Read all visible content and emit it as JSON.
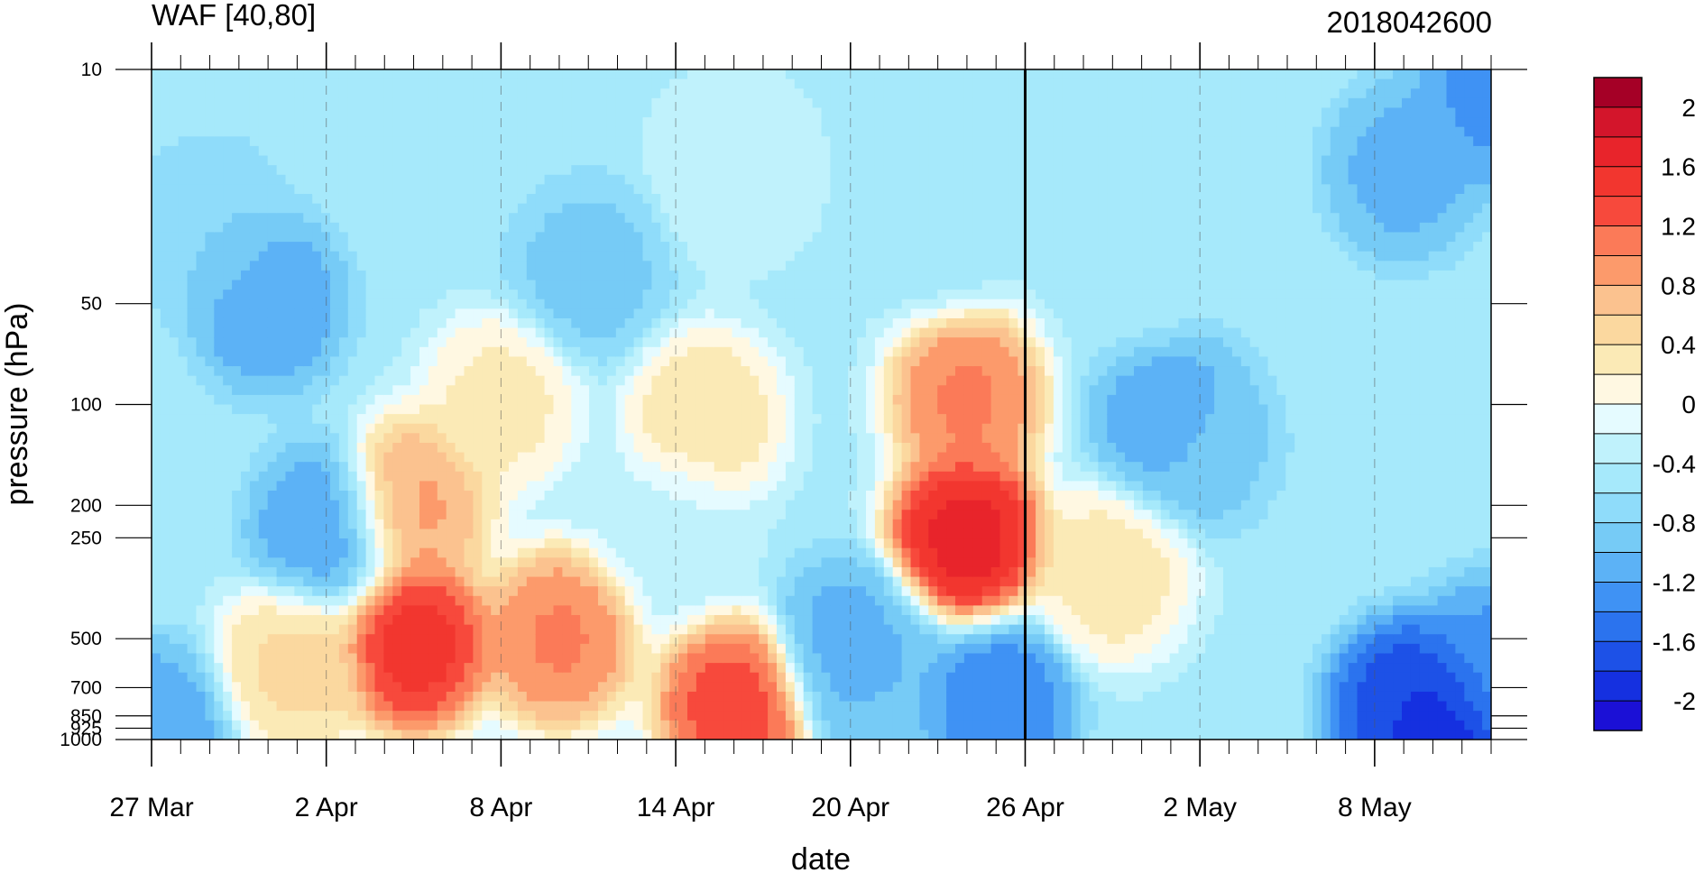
{
  "chart_data": {
    "type": "heatmap",
    "title": "WAF [40,80]",
    "subtitle": "2018042600",
    "xlabel": "date",
    "ylabel": "pressure (hPa)",
    "x_ticks": [
      "27 Mar",
      "2 Apr",
      "8 Apr",
      "14 Apr",
      "20 Apr",
      "26 Apr",
      "2 May",
      "8 May"
    ],
    "x_range": [
      "2018-03-27",
      "2018-05-12"
    ],
    "y_ticks": [
      10,
      50,
      100,
      200,
      250,
      500,
      700,
      850,
      925,
      1000
    ],
    "y_tick_labels": [
      "10",
      "50",
      "100",
      "200",
      "250",
      "500",
      "700",
      "850",
      "925",
      "1000"
    ],
    "y_scale": "log",
    "y_range": [
      1000,
      10
    ],
    "reference_date": "2018-04-26",
    "colorbar": {
      "labels": [
        "2",
        "1.6",
        "1.2",
        "0.8",
        "0.4",
        "0",
        "-0.4",
        "-0.8",
        "-1.2",
        "-1.6",
        "-2"
      ],
      "levels": [
        2.2,
        2.0,
        1.8,
        1.6,
        1.4,
        1.2,
        1.0,
        0.8,
        0.6,
        0.4,
        0.2,
        0.0,
        -0.2,
        -0.4,
        -0.6,
        -0.8,
        -1.0,
        -1.2,
        -1.4,
        -1.6,
        -1.8,
        -2.0,
        -2.2
      ],
      "colors": [
        "#a50026",
        "#d3152b",
        "#e8242b",
        "#f2362f",
        "#f7493c",
        "#fb7a58",
        "#fc9a6b",
        "#fbc28f",
        "#fbd89f",
        "#fbeab6",
        "#fff8e2",
        "#e5fbff",
        "#c0f2fc",
        "#a6e9fb",
        "#8fdcfa",
        "#76cbf6",
        "#5cb2f6",
        "#3f92f4",
        "#2b73ee",
        "#1d51e7",
        "#1530e0",
        "#1b10d6"
      ]
    },
    "features": [
      {
        "date": "2018-04-05",
        "pressure": 520,
        "value": 1.6
      },
      {
        "date": "2018-04-16",
        "pressure": 800,
        "value": 1.4
      },
      {
        "date": "2018-04-24",
        "pressure": 250,
        "value": 1.8
      },
      {
        "date": "2018-04-24",
        "pressure": 95,
        "value": 1.1
      },
      {
        "date": "2018-04-10",
        "pressure": 500,
        "value": 1.1
      },
      {
        "date": "2018-04-05",
        "pressure": 200,
        "value": 0.9
      },
      {
        "date": "2018-04-15",
        "pressure": 110,
        "value": 0.4
      },
      {
        "date": "2018-04-01",
        "pressure": 600,
        "value": 0.5
      },
      {
        "date": "2018-04-08",
        "pressure": 100,
        "value": 0.3
      },
      {
        "date": "2018-04-29",
        "pressure": 320,
        "value": 0.35
      },
      {
        "date": "2018-04-14",
        "pressure": 240,
        "value": -0.25
      },
      {
        "date": "2018-03-31",
        "pressure": 50,
        "value": -1.2
      },
      {
        "date": "2018-03-29",
        "pressure": 30,
        "value": -0.8
      },
      {
        "date": "2018-04-02",
        "pressure": 240,
        "value": -1.2
      },
      {
        "date": "2018-04-11",
        "pressure": 40,
        "value": -0.9
      },
      {
        "date": "2018-04-20",
        "pressure": 520,
        "value": -1.1
      },
      {
        "date": "2018-04-21",
        "pressure": 660,
        "value": -1.0
      },
      {
        "date": "2018-04-25",
        "pressure": 780,
        "value": -1.4
      },
      {
        "date": "2018-05-02",
        "pressure": 130,
        "value": -0.9
      },
      {
        "date": "2018-05-01",
        "pressure": 110,
        "value": -1.2
      },
      {
        "date": "2018-05-09",
        "pressure": 20,
        "value": -1.1
      },
      {
        "date": "2018-05-10",
        "pressure": 900,
        "value": -2.1
      },
      {
        "date": "2018-05-09",
        "pressure": 820,
        "value": -1.7
      },
      {
        "date": "2018-05-12",
        "pressure": 600,
        "value": -1.3
      },
      {
        "date": "2018-05-12",
        "pressure": 12,
        "value": -1.3
      },
      {
        "date": "2018-03-27",
        "pressure": 950,
        "value": -1.2
      },
      {
        "date": "2018-04-16",
        "pressure": 20,
        "value": -0.2
      },
      {
        "date": "2018-04-30",
        "pressure": 40,
        "value": -0.5
      },
      {
        "date": "2018-04-23",
        "pressure": 30,
        "value": -0.5
      }
    ]
  }
}
